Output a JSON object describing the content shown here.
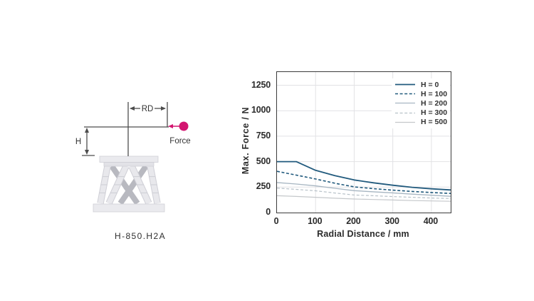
{
  "diagram": {
    "labels": {
      "rd": "RD",
      "h": "H",
      "force": "Force"
    },
    "caption": "H-850.H2A",
    "colors": {
      "force": "#d31570",
      "dimension": "#4d4d4d",
      "hexapod_light": "#e8e8ec",
      "hexapod_light_edge": "#cfcfd6",
      "hexapod_dark": "#b8b9c0"
    }
  },
  "chart_data": {
    "type": "line",
    "title": "",
    "xlabel": "Radial Distance / mm",
    "ylabel": "Max. Force / N",
    "xlim": [
      0,
      450
    ],
    "ylim": [
      0,
      1380
    ],
    "x_ticks": [
      0,
      100,
      200,
      300,
      400
    ],
    "y_ticks": [
      0,
      250,
      500,
      750,
      1000,
      1250
    ],
    "grid": true,
    "grid_color": "#e2e2e5",
    "frame_color": "#3b3b3c",
    "legend_position": "top-right",
    "x": [
      0,
      50,
      100,
      150,
      200,
      250,
      300,
      350,
      400,
      450
    ],
    "series": [
      {
        "name": "H = 0",
        "color": "#215a7d",
        "dash": "solid",
        "values": [
          500,
          500,
          415,
          362,
          320,
          292,
          268,
          248,
          233,
          222
        ]
      },
      {
        "name": "H = 100",
        "color": "#215a7d",
        "dash": "dashed",
        "values": [
          405,
          368,
          330,
          288,
          252,
          235,
          220,
          207,
          197,
          188
        ]
      },
      {
        "name": "H = 200",
        "color": "#a7b6c2",
        "dash": "solid",
        "values": [
          295,
          280,
          262,
          238,
          215,
          204,
          193,
          181,
          170,
          160
        ]
      },
      {
        "name": "H = 300",
        "color": "#b7c1c8",
        "dash": "dashed",
        "values": [
          240,
          228,
          214,
          192,
          172,
          165,
          157,
          150,
          143,
          137
        ]
      },
      {
        "name": "H = 500",
        "color": "#c5c8cb",
        "dash": "solid",
        "values": [
          165,
          158,
          150,
          141,
          133,
          128,
          123,
          118,
          114,
          111
        ]
      }
    ]
  }
}
